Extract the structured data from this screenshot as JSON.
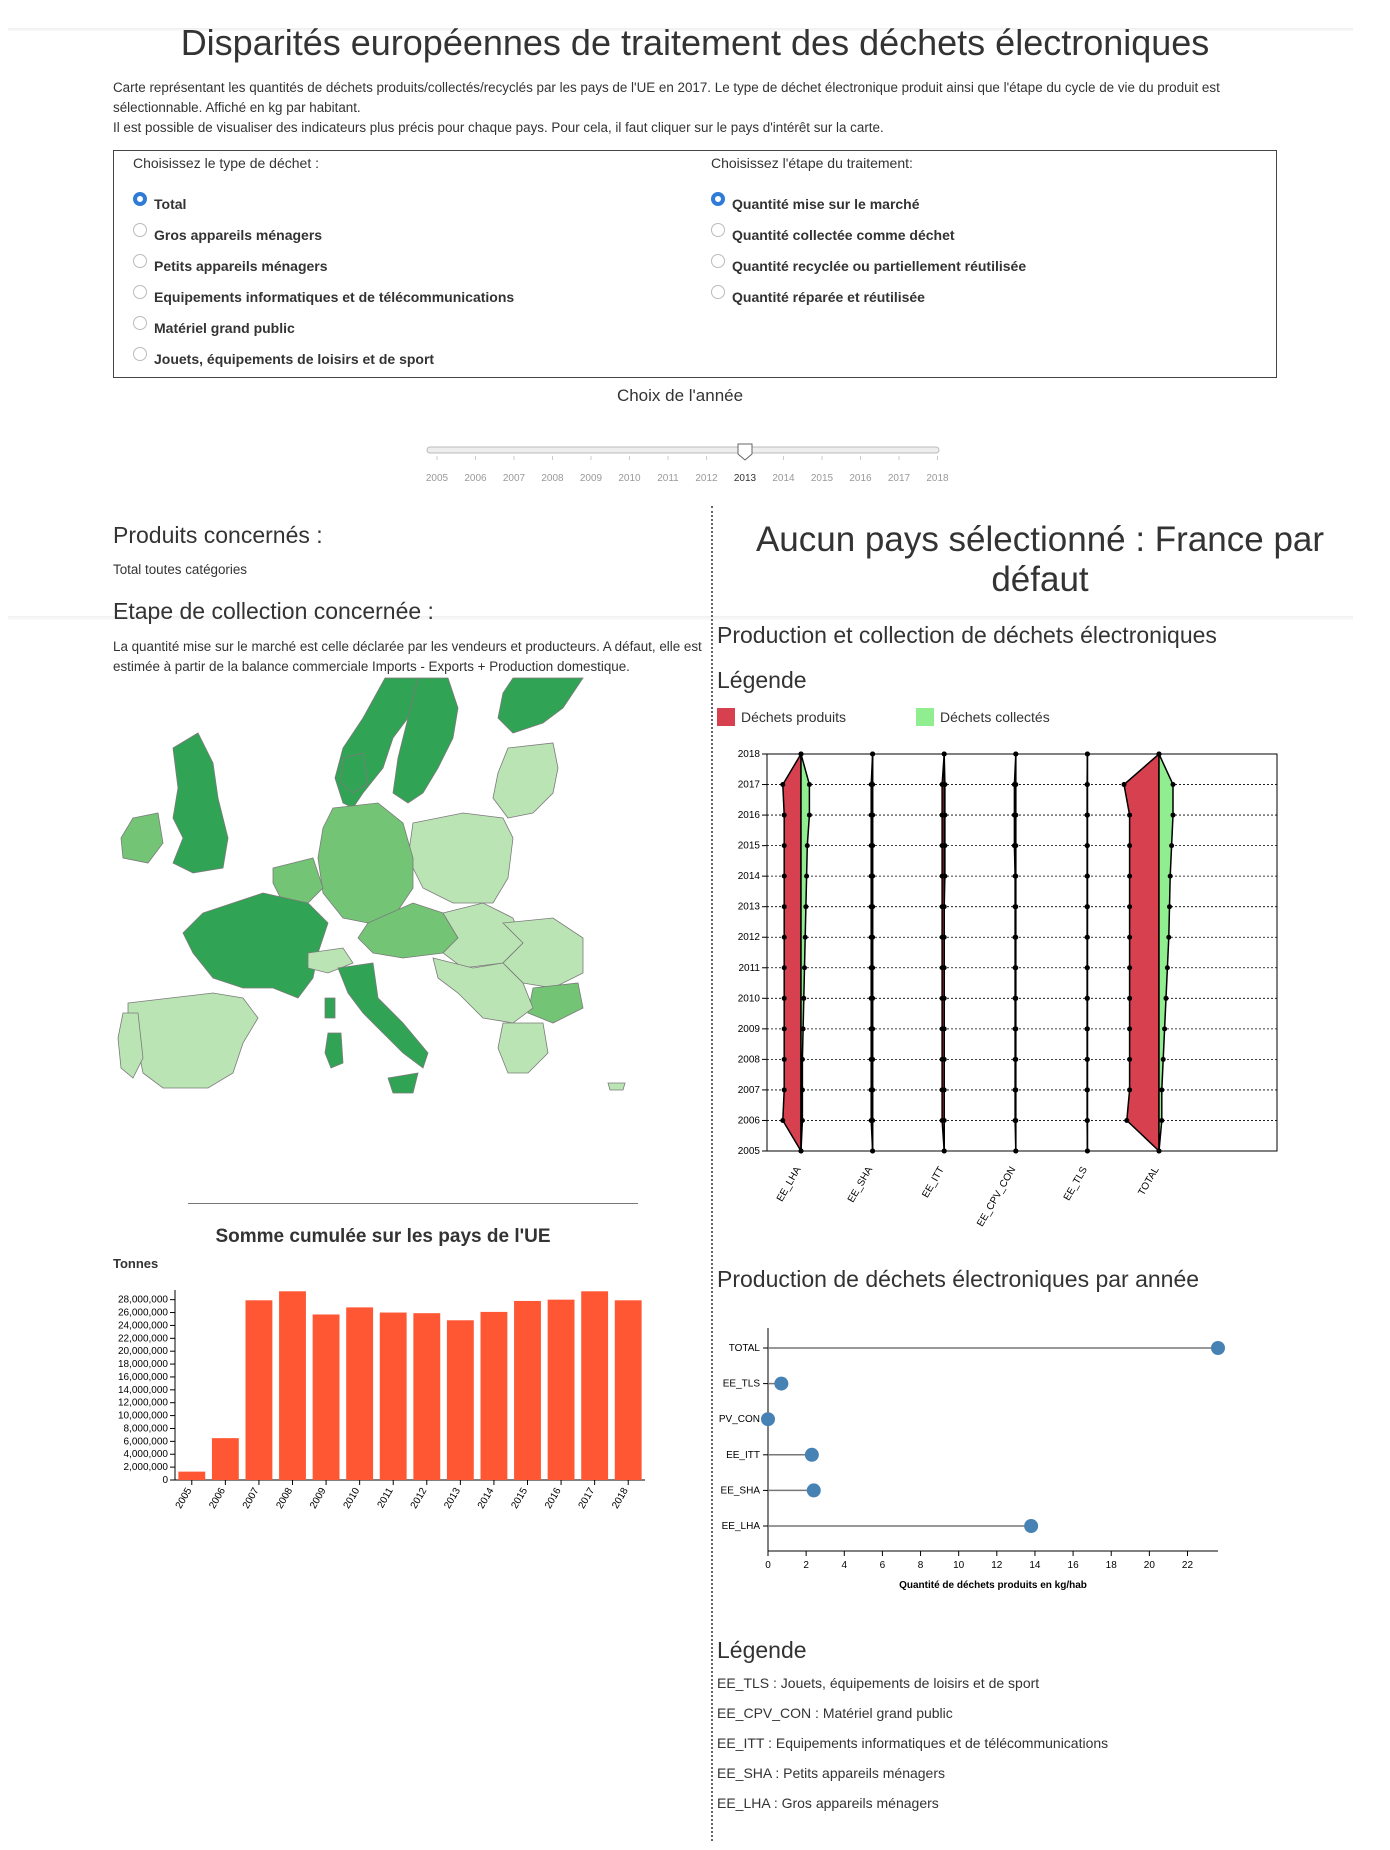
{
  "page": {
    "title": "Disparités européennes de traitement des déchets électroniques",
    "intro_1": "Carte représentant les quantités de déchets produits/collectés/recyclés par les pays de l'UE en 2017. Le type de déchet électronique produit ainsi que l'étape du cycle de vie du produit est sélectionnable. Affiché en kg par habitant.",
    "intro_2": "Il est possible de visualiser des indicateurs plus précis pour chaque pays. Pour cela, il faut cliquer sur le pays d'intérêt sur la carte."
  },
  "filters": {
    "waste_title": "Choisissez le type de déchet :",
    "waste_options": [
      "Total",
      "Gros appareils ménagers",
      "Petits appareils ménagers",
      "Equipements informatiques et de télécommunications",
      "Matériel grand public",
      "Jouets, équipements de loisirs et de sport"
    ],
    "waste_selected": 0,
    "stage_title": "Choisissez l'étape du traitement:",
    "stage_options": [
      "Quantité mise sur le marché",
      "Quantité collectée comme déchet",
      "Quantité recyclée ou partiellement réutilisée",
      "Quantité réparée et réutilisée"
    ],
    "stage_selected": 0
  },
  "year_slider": {
    "title": "Choix de l'année",
    "years": [
      "2005",
      "2006",
      "2007",
      "2008",
      "2009",
      "2010",
      "2011",
      "2012",
      "2013",
      "2014",
      "2015",
      "2016",
      "2017",
      "2018"
    ],
    "selected": "2013"
  },
  "left": {
    "products_title": "Produits concernés :",
    "products_value": "Total toutes catégories",
    "stage_title": "Etape de collection concernée :",
    "stage_text": "La quantité mise sur le marché est celle déclarée par les vendeurs et producteurs. A défaut, elle est estimée à partir de la balance commerciale Imports - Exports + Production domestique."
  },
  "map": {
    "colors": {
      "dark": "#31a354",
      "mid": "#74c476",
      "light": "#bae4b3",
      "border": "#7b7b7b"
    }
  },
  "right": {
    "country_title": "Aucun pays sélectionné : France par défaut",
    "violin_title": "Production et collection de déchets électroniques",
    "legend_title": "Légende",
    "legend_produced": "Déchets produits",
    "legend_collected": "Déchets collectés",
    "lollipop_title": "Production de déchets électroniques par année",
    "legend2_title": "Légende",
    "abbreviations": [
      "EE_TLS : Jouets, équipements de loisirs et de sport",
      "EE_CPV_CON : Matériel grand public",
      "EE_ITT : Equipements informatiques et de télécommunications",
      "EE_SHA : Petits appareils ménagers",
      "EE_LHA : Gros appareils ménagers"
    ],
    "colors": {
      "produced": "#d6404f",
      "collected": "#90ee90",
      "dot": "#4682b4"
    }
  },
  "chart_data": [
    {
      "type": "bar",
      "title": "Somme cumulée sur les pays de l'UE",
      "ylabel": "Tonnes",
      "xlabel": "",
      "categories": [
        "2005",
        "2006",
        "2007",
        "2008",
        "2009",
        "2010",
        "2011",
        "2012",
        "2013",
        "2014",
        "2015",
        "2016",
        "2017",
        "2018"
      ],
      "values": [
        1300000,
        6500000,
        27900000,
        29300000,
        25700000,
        26800000,
        26000000,
        25900000,
        24800000,
        26100000,
        27800000,
        28000000,
        29300000,
        27900000
      ],
      "ylim": [
        0,
        29500000
      ],
      "yticks": [
        0,
        2000000,
        4000000,
        6000000,
        8000000,
        10000000,
        12000000,
        14000000,
        16000000,
        18000000,
        20000000,
        22000000,
        24000000,
        26000000,
        28000000
      ],
      "ytick_labels": [
        "0",
        "2,000,000",
        "4,000,000",
        "6,000,000",
        "8,000,000",
        "10,000,000",
        "12,000,000",
        "14,000,000",
        "16,000,000",
        "18,000,000",
        "20,000,000",
        "22,000,000",
        "24,000,000",
        "26,000,000",
        "28,000,000"
      ],
      "color": "#ff5733"
    },
    {
      "type": "area",
      "title": "Production et collection de déchets électroniques",
      "categories": [
        "EE_LHA",
        "EE_SHA",
        "EE_ITT",
        "EE_CPV_CON",
        "EE_TLS",
        "TOTAL"
      ],
      "years": [
        "2005",
        "2006",
        "2007",
        "2008",
        "2009",
        "2010",
        "2011",
        "2012",
        "2013",
        "2014",
        "2015",
        "2016",
        "2017",
        "2018"
      ],
      "series": [
        {
          "name": "Déchets produits",
          "widths": [
            [
              0.0,
              1.3,
              1.2,
              1.2,
              1.2,
              1.2,
              1.2,
              1.2,
              1.2,
              1.2,
              1.2,
              1.2,
              1.3,
              0.0
            ],
            [
              0,
              0.1,
              0.1,
              0.1,
              0.1,
              0.1,
              0.1,
              0.1,
              0.1,
              0.1,
              0.1,
              0.1,
              0.1,
              0
            ],
            [
              0,
              0.15,
              0.15,
              0.15,
              0.15,
              0.15,
              0.15,
              0.15,
              0.15,
              0.15,
              0.15,
              0.15,
              0.15,
              0
            ],
            [
              0,
              0.05,
              0.05,
              0.05,
              0.05,
              0.05,
              0.05,
              0.05,
              0.05,
              0.05,
              0.1,
              0.1,
              0.1,
              0
            ],
            [
              0,
              0.02,
              0.02,
              0.02,
              0.02,
              0.02,
              0.02,
              0.02,
              0.02,
              0.02,
              0.02,
              0.02,
              0.02,
              0
            ],
            [
              0,
              2.3,
              2.1,
              2.1,
              2.1,
              2.1,
              2.1,
              2.1,
              2.1,
              2.1,
              2.1,
              2.1,
              2.5,
              0
            ]
          ]
        },
        {
          "name": "Déchets collectés",
          "widths": [
            [
              0,
              0.1,
              0.1,
              0.1,
              0.15,
              0.2,
              0.25,
              0.3,
              0.35,
              0.4,
              0.45,
              0.6,
              0.6,
              0
            ],
            [
              0,
              0,
              0,
              0,
              0,
              0,
              0,
              0,
              0,
              0,
              0,
              0,
              0,
              0
            ],
            [
              0,
              0,
              0,
              0,
              0,
              0,
              0,
              0,
              0,
              0.05,
              0.05,
              0.05,
              0.05,
              0
            ],
            [
              0,
              0,
              0,
              0,
              0,
              0,
              0,
              0,
              0,
              0,
              0,
              0,
              0,
              0
            ],
            [
              0,
              0,
              0,
              0,
              0,
              0,
              0,
              0,
              0,
              0,
              0,
              0,
              0,
              0
            ],
            [
              0,
              0.2,
              0.2,
              0.3,
              0.4,
              0.5,
              0.6,
              0.7,
              0.75,
              0.8,
              0.9,
              1.0,
              1.0,
              0
            ]
          ]
        }
      ]
    },
    {
      "type": "scatter",
      "title": "Production de déchets électroniques par année",
      "xlabel": "Quantité de déchets produits en kg/hab",
      "categories": [
        "TOTAL",
        "EE_TLS",
        "PV_CON",
        "EE_ITT",
        "EE_SHA",
        "EE_LHA"
      ],
      "values": [
        23.6,
        0.7,
        0.0,
        2.3,
        2.4,
        13.8
      ],
      "xlim": [
        0,
        23.6
      ],
      "xticks": [
        0,
        2,
        4,
        6,
        8,
        10,
        12,
        14,
        16,
        18,
        20,
        22
      ]
    }
  ]
}
